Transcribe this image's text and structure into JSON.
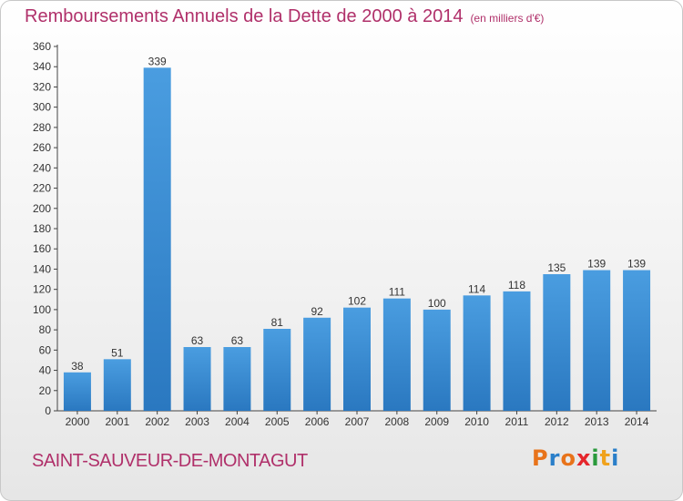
{
  "title": "Remboursements Annuels de la Dette de 2000 à 2014",
  "unit_label": "(en milliers d'€)",
  "commune": "SAINT-SAUVEUR-DE-MONTAGUT",
  "logo": {
    "text": "Proxiti",
    "letter_colors": [
      "#e8731a",
      "#2a7fc9",
      "#e8731a",
      "#e5262c",
      "#2a9a3c",
      "#f0a21c",
      "#2a7fc9"
    ]
  },
  "colors": {
    "bar": "#4a9de0",
    "bar_dark": "#2a78c0",
    "accent": "#b0306a"
  },
  "chart_data": {
    "type": "bar",
    "categories": [
      "2000",
      "2001",
      "2002",
      "2003",
      "2004",
      "2005",
      "2006",
      "2007",
      "2008",
      "2009",
      "2010",
      "2011",
      "2012",
      "2013",
      "2014"
    ],
    "values": [
      38,
      51,
      339,
      63,
      63,
      81,
      92,
      102,
      111,
      100,
      114,
      118,
      135,
      139,
      139
    ],
    "data_labels": [
      "38",
      "51",
      "339",
      "63",
      "63",
      "81",
      "92",
      "102",
      "111",
      "100",
      "114",
      "118",
      "135",
      "139",
      "139"
    ],
    "y_ticks": [
      "0",
      "20",
      "40",
      "60",
      "80",
      "100",
      "120",
      "140",
      "160",
      "180",
      "200",
      "220",
      "240",
      "260",
      "280",
      "300",
      "320",
      "340",
      "360"
    ],
    "ylim": [
      0,
      360
    ],
    "grid": false
  }
}
